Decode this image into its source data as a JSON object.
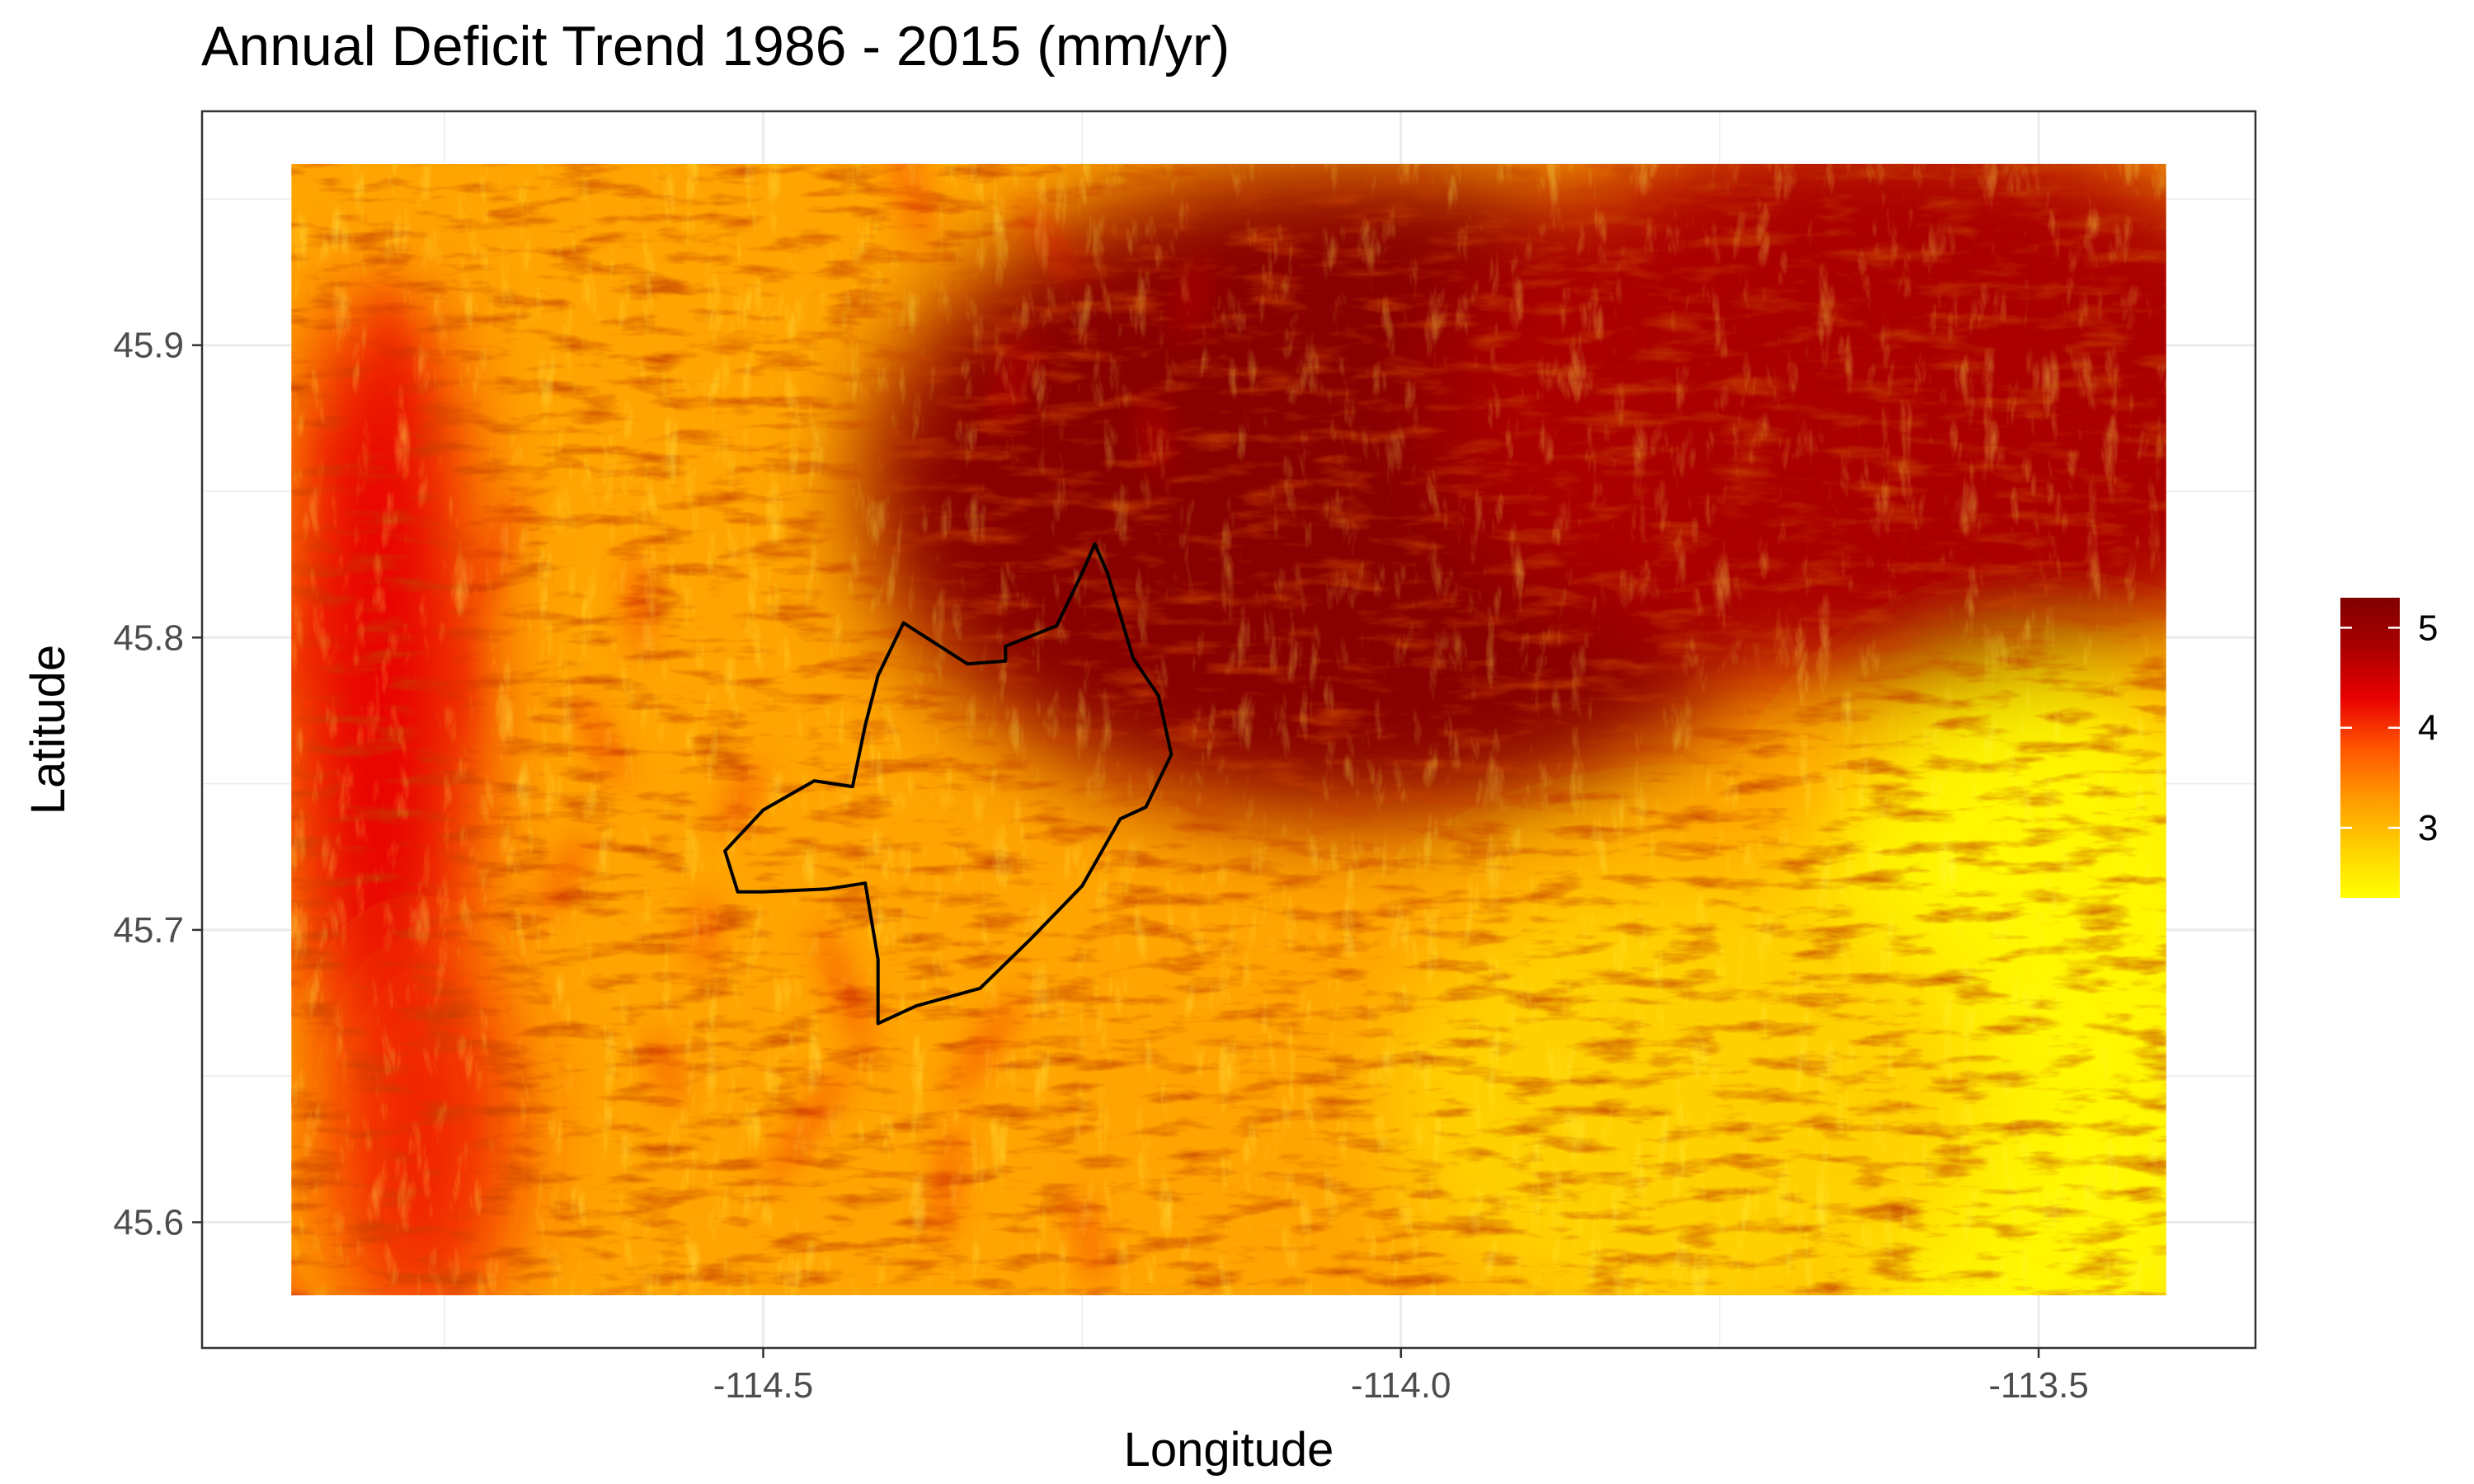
{
  "title": "Annual Deficit Trend 1986 - 2015 (mm/yr)",
  "chart_data": {
    "type": "heatmap",
    "title": "Annual Deficit Trend 1986 - 2015 (mm/yr)",
    "xlabel": "Longitude",
    "ylabel": "Latitude",
    "x_ticks": [
      {
        "value": -114.5,
        "label": "-114.5"
      },
      {
        "value": -114.0,
        "label": "-114.0"
      },
      {
        "value": -113.5,
        "label": "-113.5"
      }
    ],
    "y_ticks": [
      {
        "value": 45.6,
        "label": "45.6"
      },
      {
        "value": 45.7,
        "label": "45.7"
      },
      {
        "value": 45.8,
        "label": "45.8"
      },
      {
        "value": 45.9,
        "label": "45.9"
      }
    ],
    "xlim": [
      -114.94,
      -113.33
    ],
    "ylim": [
      45.557,
      45.98
    ],
    "raster_extent": {
      "lon": [
        -114.87,
        -113.4
      ],
      "lat": [
        45.575,
        45.962
      ]
    },
    "grid": true,
    "legend": {
      "position": "right",
      "title": "",
      "range": [
        2.3,
        5.3
      ],
      "ticks": [
        {
          "value": 3,
          "label": "3"
        },
        {
          "value": 4,
          "label": "4"
        },
        {
          "value": 5,
          "label": "5"
        }
      ],
      "colors": [
        "#ffff00",
        "#ffd000",
        "#ff9900",
        "#ff5500",
        "#e80000",
        "#aa0000",
        "#800000"
      ]
    },
    "field_features": {
      "dark_plateau": {
        "lon": -114.04,
        "lat": 45.85,
        "value": 5.2
      },
      "east_plain": {
        "lon": -113.5,
        "lat": 45.66,
        "value": 2.4
      },
      "west_ridge": {
        "lon": -114.8,
        "lat": 45.78,
        "value": 4.3
      },
      "typical_slope_value": 3.2
    },
    "basin_outline": [
      [
        -114.24,
        45.832
      ],
      [
        -114.23,
        45.822
      ],
      [
        -114.21,
        45.793
      ],
      [
        -114.19,
        45.78
      ],
      [
        -114.18,
        45.76
      ],
      [
        -114.2,
        45.742
      ],
      [
        -114.22,
        45.738
      ],
      [
        -114.25,
        45.715
      ],
      [
        -114.29,
        45.697
      ],
      [
        -114.33,
        45.68
      ],
      [
        -114.38,
        45.674
      ],
      [
        -114.41,
        45.668
      ],
      [
        -114.41,
        45.69
      ],
      [
        -114.42,
        45.716
      ],
      [
        -114.45,
        45.714
      ],
      [
        -114.5,
        45.713
      ],
      [
        -114.52,
        45.713
      ],
      [
        -114.53,
        45.727
      ],
      [
        -114.5,
        45.741
      ],
      [
        -114.46,
        45.751
      ],
      [
        -114.43,
        45.749
      ],
      [
        -114.42,
        45.77
      ],
      [
        -114.41,
        45.787
      ],
      [
        -114.39,
        45.805
      ],
      [
        -114.34,
        45.791
      ],
      [
        -114.31,
        45.792
      ],
      [
        -114.31,
        45.797
      ],
      [
        -114.27,
        45.804
      ],
      [
        -114.25,
        45.822
      ]
    ]
  }
}
